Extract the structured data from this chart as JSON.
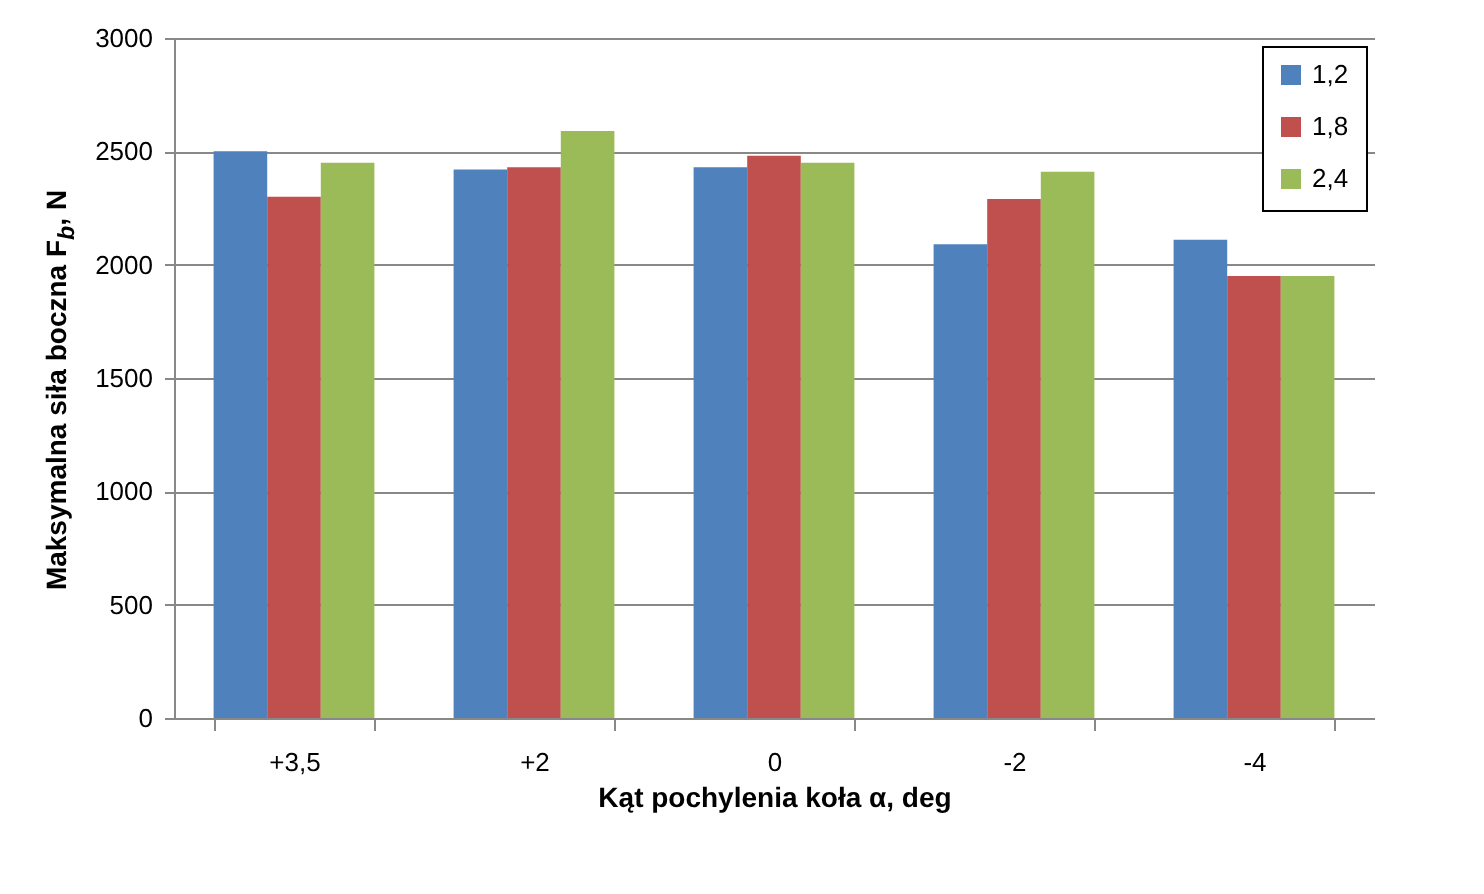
{
  "chart_data": {
    "type": "bar",
    "xlabel": "Kąt pochylenia koła α, deg",
    "ylabel": "Maksymalna siła boczna $_{}$F$_{b}$, N",
    "categories": [
      "+3,5",
      "+2",
      "0",
      "-2",
      "-4"
    ],
    "series": [
      {
        "name": "1,2",
        "color": "#4f81bd",
        "values": [
          2500,
          2420,
          2430,
          2090,
          2110
        ]
      },
      {
        "name": "1,8",
        "color": "#c0504d",
        "values": [
          2300,
          2430,
          2480,
          2290,
          1950
        ]
      },
      {
        "name": "2,4",
        "color": "#9bbb59",
        "values": [
          2450,
          2590,
          2450,
          2410,
          1950
        ]
      }
    ],
    "ylim": [
      0,
      3000
    ],
    "yticks": [
      0,
      500,
      1000,
      1500,
      2000,
      2500,
      3000
    ],
    "grid": "y",
    "legend": "top right"
  }
}
